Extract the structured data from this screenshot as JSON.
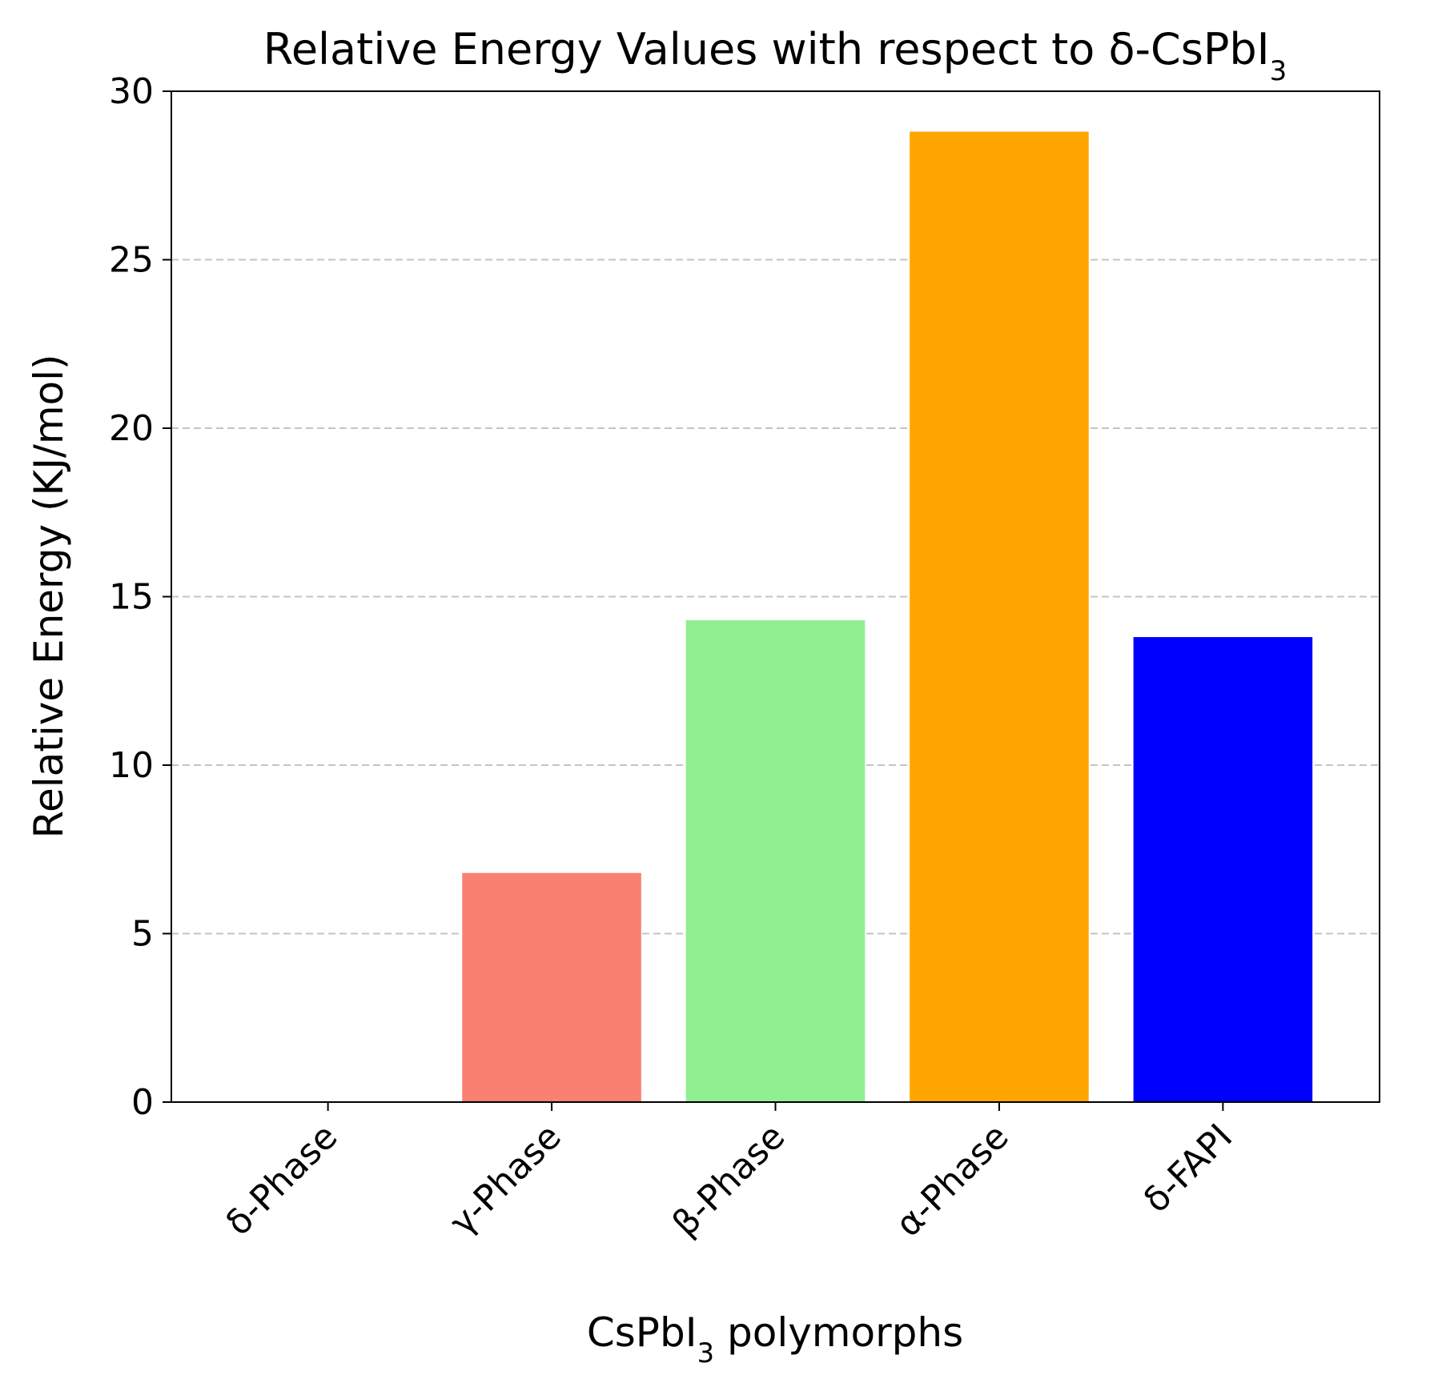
{
  "chart_data": {
    "type": "bar",
    "title": "Relative Energy Values with respect to δ-CsPbI₃",
    "xlabel": "CsPbI₃ polymorphs",
    "ylabel": "Relative Energy (KJ/mol)",
    "categories": [
      "δ-Phase",
      "γ-Phase",
      "β-Phase",
      "α-Phase",
      "δ-FAPI"
    ],
    "values": [
      0,
      6.8,
      14.3,
      28.8,
      13.8
    ],
    "colors": [
      "#ffffff",
      "#fa8072",
      "#90ee90",
      "#ffa500",
      "#0000ff"
    ],
    "ylim": [
      0,
      30
    ],
    "yticks": [
      0,
      5,
      10,
      15,
      20,
      25,
      30
    ],
    "grid": "y-dashed"
  }
}
